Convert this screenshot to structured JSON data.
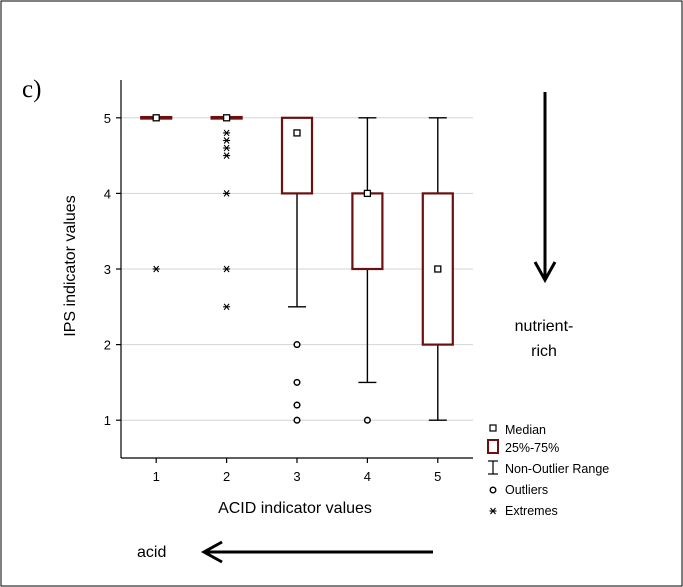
{
  "panel_label": "c)",
  "annotations": {
    "right_text_line1": "nutrient-",
    "right_text_line2": "rich",
    "bottom_text": "acid"
  },
  "legend": {
    "items": [
      {
        "key": "median",
        "label": "Median"
      },
      {
        "key": "box",
        "label": "25%-75%"
      },
      {
        "key": "range",
        "label": "Non-Outlier Range"
      },
      {
        "key": "outlier",
        "label": "Outliers"
      },
      {
        "key": "extreme",
        "label": "Extremes"
      }
    ]
  },
  "colors": {
    "box_stroke": "#6b0f0f",
    "gridline": "#d4d4d4",
    "axis": "#000000"
  },
  "chart_data": {
    "type": "box",
    "xlabel": "ACID indicator values",
    "ylabel": "IPS indicator values",
    "xlim": [
      0.5,
      5.5
    ],
    "ylim": [
      0.5,
      5.5
    ],
    "x_ticks": [
      1,
      2,
      3,
      4,
      5
    ],
    "y_ticks": [
      1,
      2,
      3,
      4,
      5
    ],
    "grid": "horizontal",
    "legend_placement": "bottom-right",
    "groups": [
      {
        "x": 1,
        "median": 5,
        "q1": 5,
        "q3": 5,
        "whisker_low": 5,
        "whisker_high": 5,
        "outliers": [],
        "extremes": [
          3
        ]
      },
      {
        "x": 2,
        "median": 5,
        "q1": 5,
        "q3": 5,
        "whisker_low": 5,
        "whisker_high": 5,
        "outliers": [],
        "extremes": [
          4.8,
          4.7,
          4.6,
          4.5,
          4,
          3,
          2.5
        ]
      },
      {
        "x": 3,
        "median": 4.8,
        "q1": 4,
        "q3": 5,
        "whisker_low": 2.5,
        "whisker_high": 5,
        "outliers": [
          2,
          1.5,
          1.2,
          1
        ],
        "extremes": []
      },
      {
        "x": 4,
        "median": 4,
        "q1": 3,
        "q3": 4,
        "whisker_low": 1.5,
        "whisker_high": 5,
        "outliers": [
          1
        ],
        "extremes": []
      },
      {
        "x": 5,
        "median": 3,
        "q1": 2,
        "q3": 4,
        "whisker_low": 1,
        "whisker_high": 5,
        "outliers": [],
        "extremes": []
      }
    ]
  }
}
